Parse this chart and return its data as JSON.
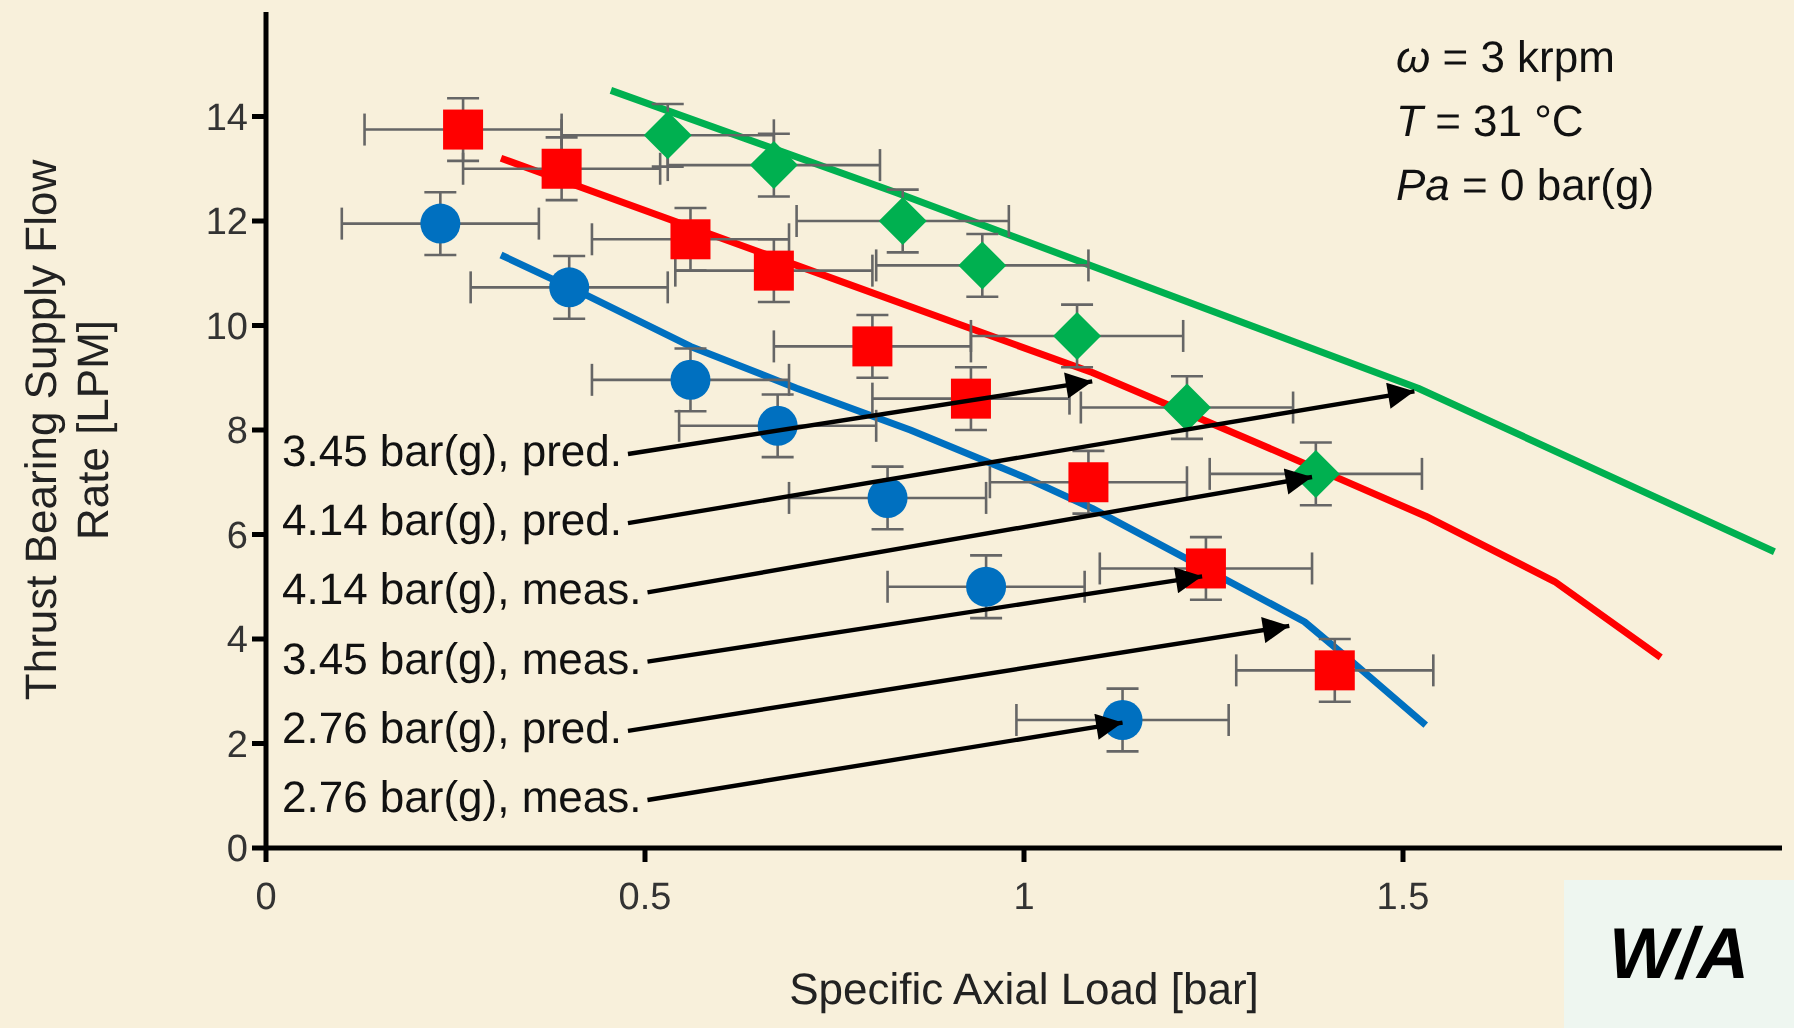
{
  "chart_data": {
    "type": "scatter",
    "xlabel": "Specific Axial Load [bar]",
    "ylabel": "Thrust Bearing Supply Flow\nRate [LPM]",
    "xlim": [
      0,
      2
    ],
    "xticks": [
      0,
      0.5,
      1,
      1.5
    ],
    "ylim": [
      0,
      16
    ],
    "yticks": [
      0,
      2,
      4,
      6,
      8,
      10,
      12,
      14
    ],
    "grid": false,
    "legend": false,
    "series": [
      {
        "type": "line",
        "marker": "none",
        "color": "#0070c0",
        "x": [
          0.31,
          0.42,
          0.56,
          0.7,
          0.85,
          1.0,
          1.09,
          1.2,
          1.37,
          1.43,
          1.53
        ],
        "values": [
          11.35,
          10.6,
          9.6,
          8.8,
          8.0,
          7.1,
          6.5,
          5.65,
          4.33,
          3.6,
          2.35
        ]
      },
      {
        "type": "line",
        "marker": "none",
        "color": "#ff0000",
        "x": [
          0.31,
          0.7,
          1.09,
          1.3,
          1.53,
          1.7,
          1.84
        ],
        "values": [
          13.2,
          11.15,
          9.1,
          7.8,
          6.35,
          5.1,
          3.65
        ]
      },
      {
        "type": "line",
        "marker": "none",
        "color": "#00b050",
        "x": [
          0.455,
          0.83,
          1.52,
          1.99
        ],
        "values": [
          14.5,
          12.55,
          8.8,
          5.67
        ]
      },
      {
        "marker": "circle",
        "color": "#0070c0",
        "x": [
          0.23,
          0.4,
          0.56,
          0.675,
          0.82,
          0.95,
          1.13
        ],
        "values": [
          11.95,
          10.73,
          8.96,
          8.08,
          6.7,
          5.0,
          2.45
        ],
        "errors": [
          0.6,
          0.6,
          0.6,
          0.6,
          0.6,
          0.6,
          0.6
        ],
        "xerrors": [
          0.13,
          0.13,
          0.13,
          0.13,
          0.13,
          0.13,
          0.14
        ]
      },
      {
        "marker": "square",
        "color": "#ff0000",
        "x": [
          0.26,
          0.39,
          0.56,
          0.67,
          0.8,
          0.93,
          1.085,
          1.24,
          1.41
        ],
        "values": [
          13.75,
          13.0,
          11.65,
          11.05,
          9.6,
          8.6,
          7.0,
          5.35,
          3.4
        ],
        "errors": [
          0.6,
          0.6,
          0.6,
          0.6,
          0.6,
          0.6,
          0.6,
          0.6,
          0.6
        ],
        "xerrors": [
          0.13,
          0.13,
          0.13,
          0.13,
          0.13,
          0.13,
          0.13,
          0.14,
          0.13
        ]
      },
      {
        "marker": "diamond",
        "color": "#00b050",
        "x": [
          0.53,
          0.67,
          0.84,
          0.945,
          1.07,
          1.215,
          1.385
        ],
        "values": [
          13.64,
          13.07,
          12.0,
          11.15,
          9.8,
          8.43,
          7.16
        ],
        "errors": [
          0.6,
          0.6,
          0.6,
          0.6,
          0.6,
          0.6,
          0.6
        ],
        "xerrors": [
          0.14,
          0.14,
          0.14,
          0.14,
          0.14,
          0.14,
          0.14
        ]
      }
    ],
    "annotations": [
      {
        "text": "3.45 bar(g), pred.",
        "x": 1.09,
        "y": 8.93
      },
      {
        "text": "4.14 bar(g), pred.",
        "x": 1.515,
        "y": 8.74
      },
      {
        "text": "4.14 bar(g), meas.",
        "x": 1.38,
        "y": 7.1
      },
      {
        "text": "3.45 bar(g), meas.",
        "x": 1.235,
        "y": 5.2
      },
      {
        "text": "2.76 bar(g), pred.",
        "x": 1.35,
        "y": 4.25
      },
      {
        "text": "2.76 bar(g), meas.",
        "x": 1.13,
        "y": 2.4
      },
      "ω = 3 krpm",
      "T = 31 °C",
      "Pa = 0 bar(g)",
      "W/A"
    ]
  }
}
